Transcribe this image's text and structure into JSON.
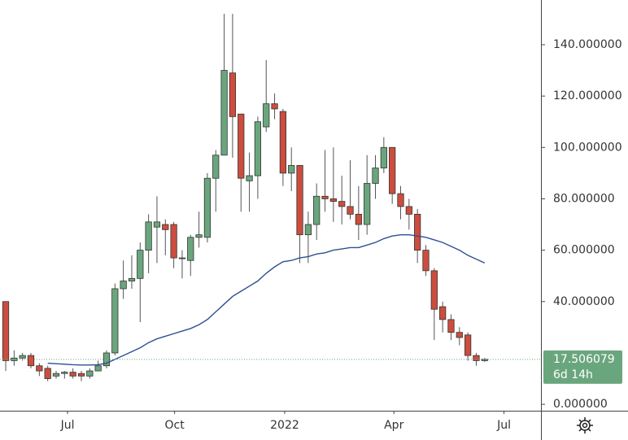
{
  "chart_data": {
    "type": "candlestick",
    "open": [
      40,
      17,
      18,
      19,
      15,
      14,
      11,
      12,
      12.5,
      12,
      11,
      13,
      15,
      20,
      45,
      48,
      49,
      60,
      69,
      70,
      70,
      57,
      56,
      65,
      65,
      88,
      97,
      129,
      113,
      87,
      89,
      108,
      117,
      114,
      90,
      93,
      66,
      70,
      81,
      80,
      79,
      77,
      74,
      70,
      86,
      92,
      100,
      82,
      77,
      74,
      60,
      52,
      38,
      33,
      28,
      27,
      19,
      17
    ],
    "high": [
      40,
      21,
      20,
      20,
      16,
      15,
      13,
      13,
      14,
      13,
      14,
      17,
      21,
      47,
      56,
      58,
      63,
      74,
      81,
      72,
      71,
      60,
      66,
      75,
      90,
      99,
      152,
      152,
      112,
      98,
      112,
      134,
      121,
      115,
      100,
      93,
      75,
      86,
      99,
      100,
      89,
      95,
      85,
      97,
      97,
      104,
      100,
      85,
      80,
      76,
      62,
      53,
      40,
      35,
      30,
      28,
      20,
      18
    ],
    "low": [
      13,
      15,
      17,
      14,
      11,
      9,
      10,
      10,
      10,
      9,
      10,
      13,
      14,
      19,
      41,
      45,
      32,
      51,
      55,
      58,
      53,
      49,
      50,
      61,
      63,
      75,
      97,
      96,
      75,
      75,
      80,
      106,
      111,
      85,
      83,
      55,
      55,
      64,
      75,
      71,
      70,
      72,
      64,
      66,
      80,
      90,
      78,
      72,
      68,
      55,
      50,
      25,
      28,
      25,
      23,
      17,
      15,
      16.5
    ],
    "close": [
      17,
      18,
      19,
      15,
      13,
      10,
      12,
      12.5,
      11,
      11,
      13,
      15,
      20,
      45,
      48,
      49,
      60,
      71,
      71,
      68,
      57,
      57,
      65,
      66,
      88,
      97,
      130,
      112,
      88,
      89,
      110,
      117,
      115,
      90,
      93,
      66,
      70,
      81,
      80,
      79,
      77,
      74,
      70,
      86,
      92,
      100,
      82,
      77,
      74,
      60,
      52,
      37,
      33,
      28,
      26,
      19,
      17,
      17.506079
    ],
    "moving_average": {
      "color": "#2f4f93",
      "values": [
        null,
        null,
        null,
        null,
        null,
        16,
        15.8,
        15.6,
        15.4,
        15.3,
        15.3,
        15.4,
        16,
        17.5,
        19,
        20.5,
        22,
        24,
        25.5,
        26.5,
        27.5,
        28.5,
        29.5,
        31,
        33,
        36,
        39,
        42,
        44,
        46,
        48,
        51,
        53.5,
        55.5,
        56,
        57,
        57.5,
        58.5,
        59,
        60,
        60.5,
        61,
        61,
        62,
        63,
        64.5,
        65.5,
        66,
        66,
        65.5,
        65,
        64,
        63,
        61.5,
        60,
        58,
        56.5,
        55
      ]
    },
    "up_color": "#6aa67d",
    "down_color": "#cc4d3e",
    "xlim": [
      -0.68,
      63.7
    ],
    "xticks": [
      {
        "value": 7.36,
        "label": "Jul"
      },
      {
        "value": 20.1,
        "label": "Oct"
      },
      {
        "value": 33.2,
        "label": "2022"
      },
      {
        "value": 46.2,
        "label": "Apr"
      },
      {
        "value": 59.3,
        "label": "Jul"
      }
    ],
    "ylim": [
      -2.5,
      157.4
    ],
    "yticks": [
      {
        "value": 0,
        "label": "0.000000"
      },
      {
        "value": 40,
        "label": "40.000000"
      },
      {
        "value": 60,
        "label": "60.000000"
      },
      {
        "value": 80,
        "label": "80.000000"
      },
      {
        "value": 100,
        "label": "100.000000"
      },
      {
        "value": 120,
        "label": "120.000000"
      },
      {
        "value": 140,
        "label": "140.000000"
      }
    ],
    "last_price": 17.506079,
    "countdown": "6d 14h"
  }
}
